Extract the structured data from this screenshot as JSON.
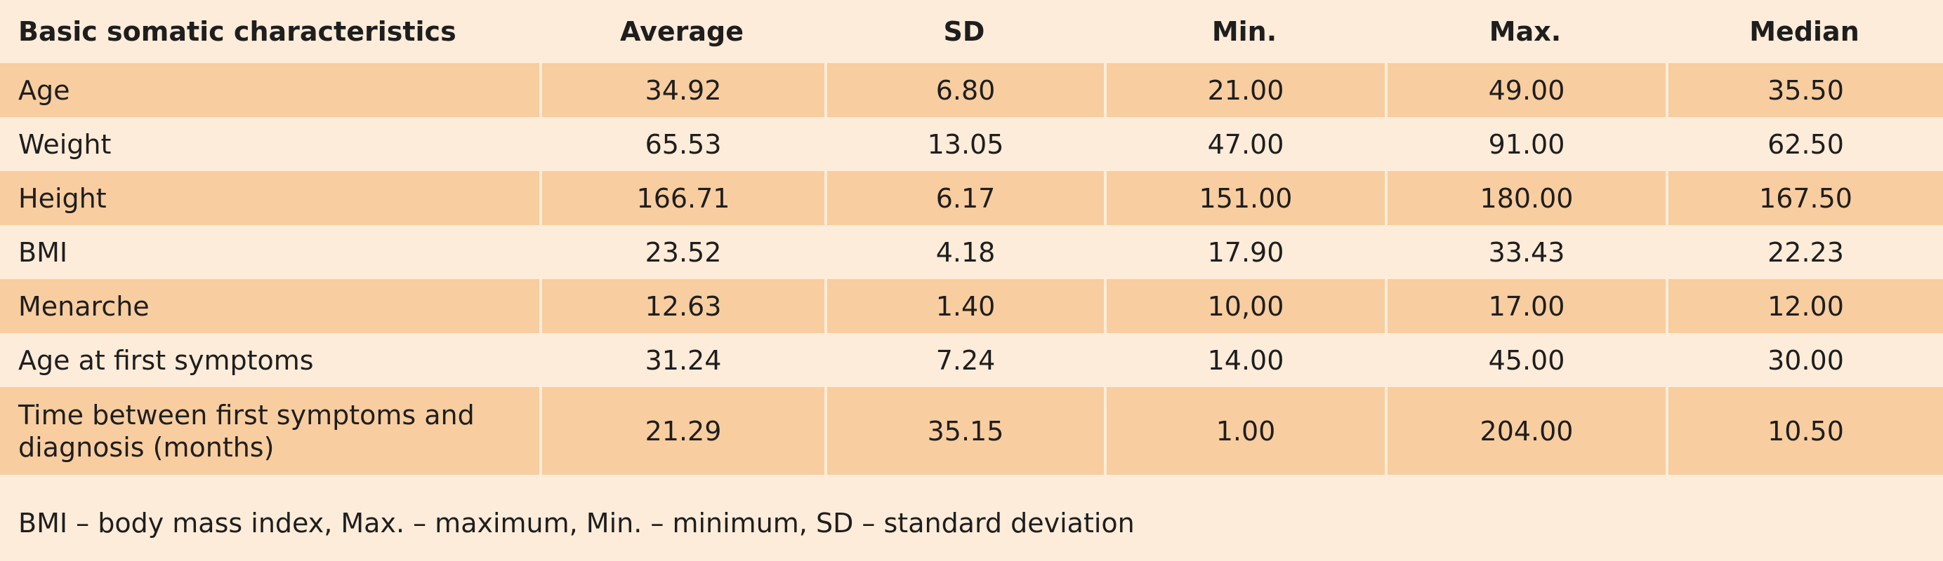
{
  "table": {
    "headers": [
      "Basic somatic characteristics",
      "Average",
      "SD",
      "Min.",
      "Max.",
      "Median"
    ],
    "rows": [
      [
        "Age",
        "34.92",
        "6.80",
        "21.00",
        "49.00",
        "35.50"
      ],
      [
        "Weight",
        "65.53",
        "13.05",
        "47.00",
        "91.00",
        "62.50"
      ],
      [
        "Height",
        "166.71",
        "6.17",
        "151.00",
        "180.00",
        "167.50"
      ],
      [
        "BMI",
        "23.52",
        "4.18",
        "17.90",
        "33.43",
        "22.23"
      ],
      [
        "Menarche",
        "12.63",
        "1.40",
        "10,00",
        "17.00",
        "12.00"
      ],
      [
        "Age at first symptoms",
        "31.24",
        "7.24",
        "14.00",
        "45.00",
        "30.00"
      ],
      [
        "Time between first symptoms and diagnosis (months)",
        "21.29",
        "35.15",
        "1.00",
        "204.00",
        "10.50"
      ]
    ]
  },
  "footnote": "BMI – body mass index, Max. – maximum, Min. – minimum, SD – standard deviation",
  "colors": {
    "background": "#fdecd9",
    "row_shade": "#f8cda0",
    "text": "#1e1e1e"
  }
}
